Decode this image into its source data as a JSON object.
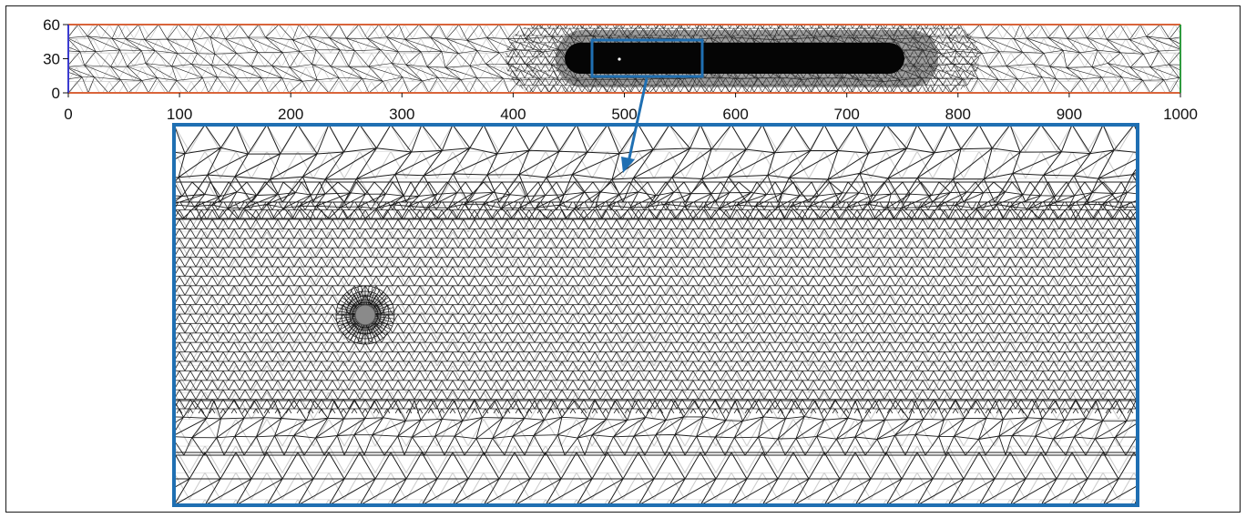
{
  "figure": {
    "x_axis": {
      "min": 0,
      "max": 1000,
      "ticks": [
        "0",
        "100",
        "200",
        "300",
        "400",
        "500",
        "600",
        "700",
        "800",
        "900",
        "1000"
      ]
    },
    "y_axis": {
      "min": 0,
      "max": 60,
      "ticks": [
        "0",
        "30",
        "60"
      ]
    },
    "domain": {
      "x_range": [
        0,
        1000
      ],
      "y_range": [
        0,
        60
      ],
      "refined_region_x": [
        455,
        750
      ],
      "refined_region_y": [
        17,
        43
      ],
      "zoom_window_x": [
        470,
        570
      ],
      "zoom_window_y": [
        18,
        44
      ],
      "obstacle_center": [
        495,
        30
      ]
    },
    "colors": {
      "top_bottom_boundary": "#d9643a",
      "inlet_boundary": "#3b3bd0",
      "outlet_boundary": "#2e9a3e",
      "highlight": "#1f6fb2",
      "mesh_dark": "#1a1a1a",
      "mesh_light": "#c8c8c8",
      "obstacle": "#8a8a8a"
    }
  }
}
